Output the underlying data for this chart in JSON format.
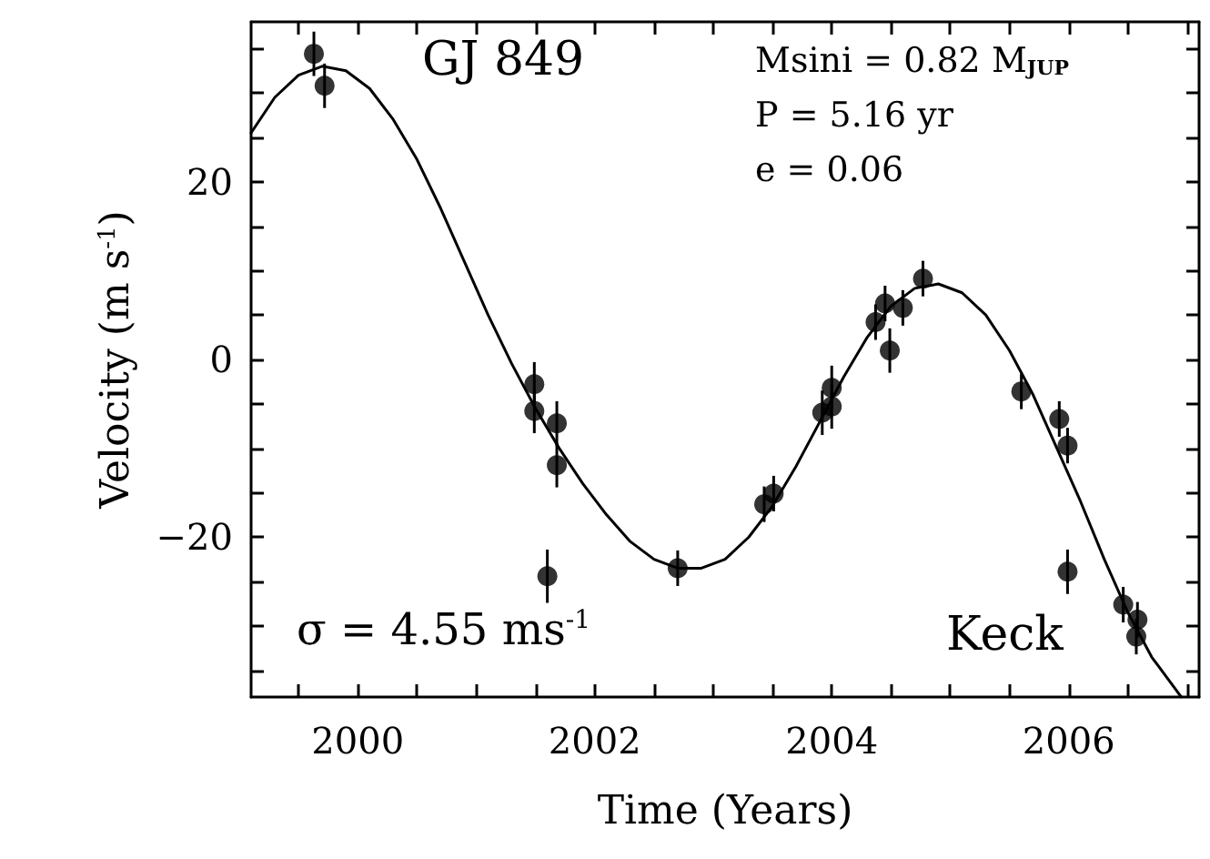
{
  "chart_data": {
    "type": "scatter",
    "xlabel": "Time (Years)",
    "ylabel": "Velocity (m s$^{-1}$)",
    "xlim": [
      1999.1,
      2007.1
    ],
    "xticks": [
      2000,
      2002,
      2004,
      2006
    ],
    "ylim": [
      -38,
      38
    ],
    "yticks": [
      -20,
      0,
      20
    ],
    "marker": "circle",
    "annotations": [
      "GJ 849",
      "Msini = 0.82 M$_{JUP}$",
      "P = 5.16 yr",
      "e = 0.06",
      "σ = 4.55 ms$^{-1}$",
      "Keck"
    ],
    "series": [
      {
        "color": "#000000",
        "x": [
          1999.63,
          1999.72,
          2001.49,
          2001.49,
          2001.6,
          2001.68,
          2001.68,
          2002.7,
          2003.43,
          2003.51,
          2003.92,
          2004.0,
          2004.0,
          2004.37,
          2004.45,
          2004.49,
          2004.6,
          2004.77,
          2005.6,
          2005.92,
          2005.99,
          2005.99,
          2006.46,
          2006.57,
          2006.58
        ],
        "values": [
          34.4,
          30.8,
          -2.8,
          -5.8,
          -24.4,
          -7.2,
          -11.9,
          -23.5,
          -16.3,
          -15.1,
          -6.0,
          -3.2,
          -5.3,
          4.2,
          6.3,
          1.0,
          5.8,
          9.1,
          -3.6,
          -6.7,
          -9.7,
          -23.9,
          -27.6,
          -31.2,
          -29.3
        ],
        "errors": [
          2.5,
          2.5,
          2.5,
          2.5,
          3,
          2.5,
          2.5,
          2,
          2,
          2,
          2.5,
          2.5,
          2.5,
          2,
          2,
          2.5,
          2,
          2,
          2,
          2,
          2,
          2.5,
          2,
          2,
          2
        ]
      },
      {
        "type": "line",
        "color": "#000000",
        "marker": "none",
        "line_style": "solid",
        "x": [
          1999.1,
          1999.3,
          1999.5,
          1999.7,
          1999.9,
          2000.1,
          2000.3,
          2000.5,
          2000.7,
          2000.9,
          2001.1,
          2001.3,
          2001.5,
          2001.7,
          2001.9,
          2002.1,
          2002.3,
          2002.5,
          2002.7,
          2002.9,
          2003.1,
          2003.3,
          2003.5,
          2003.7,
          2003.9,
          2004.1,
          2004.3,
          2004.5,
          2004.7,
          2004.9,
          2005.1,
          2005.3,
          2005.5,
          2005.7,
          2005.9,
          2006.1,
          2006.3,
          2006.5,
          2006.7,
          2006.95
        ],
        "values": [
          25.5,
          29.5,
          32,
          33,
          32.5,
          30.5,
          27,
          22.5,
          17,
          11,
          5,
          -0.5,
          -5.5,
          -10,
          -14,
          -17.5,
          -20.5,
          -22.5,
          -23.5,
          -23.5,
          -22.5,
          -20,
          -16.5,
          -12,
          -7,
          -2,
          2.5,
          6,
          8,
          8.5,
          7.5,
          5,
          1,
          -4,
          -10,
          -16,
          -22.5,
          -28.5,
          -33.5,
          -38
        ]
      }
    ]
  }
}
